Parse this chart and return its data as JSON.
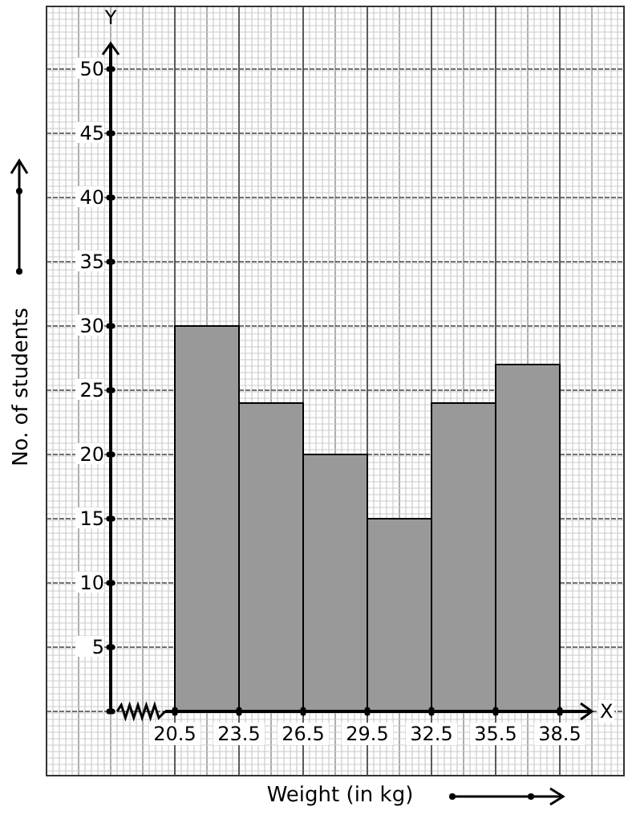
{
  "chart_data": {
    "type": "histogram",
    "xlabel": "Weight (in kg)",
    "ylabel": "No. of students",
    "bins": [
      20.5,
      23.5,
      26.5,
      29.5,
      32.5,
      35.5,
      38.5
    ],
    "values": [
      30,
      24,
      20,
      15,
      24,
      27
    ],
    "color": "#999999",
    "xlim": [
      17.5,
      40
    ],
    "xticks": [
      20.5,
      23.5,
      26.5,
      29.5,
      32.5,
      35.5,
      38.5
    ],
    "ylim": [
      0,
      52
    ],
    "yticks": [
      {
        "value": 0,
        "label": null
      },
      5,
      10,
      15,
      20,
      25,
      30,
      35,
      40,
      45,
      50
    ],
    "grid": true,
    "annotations": [
      "X",
      "Y"
    ]
  }
}
